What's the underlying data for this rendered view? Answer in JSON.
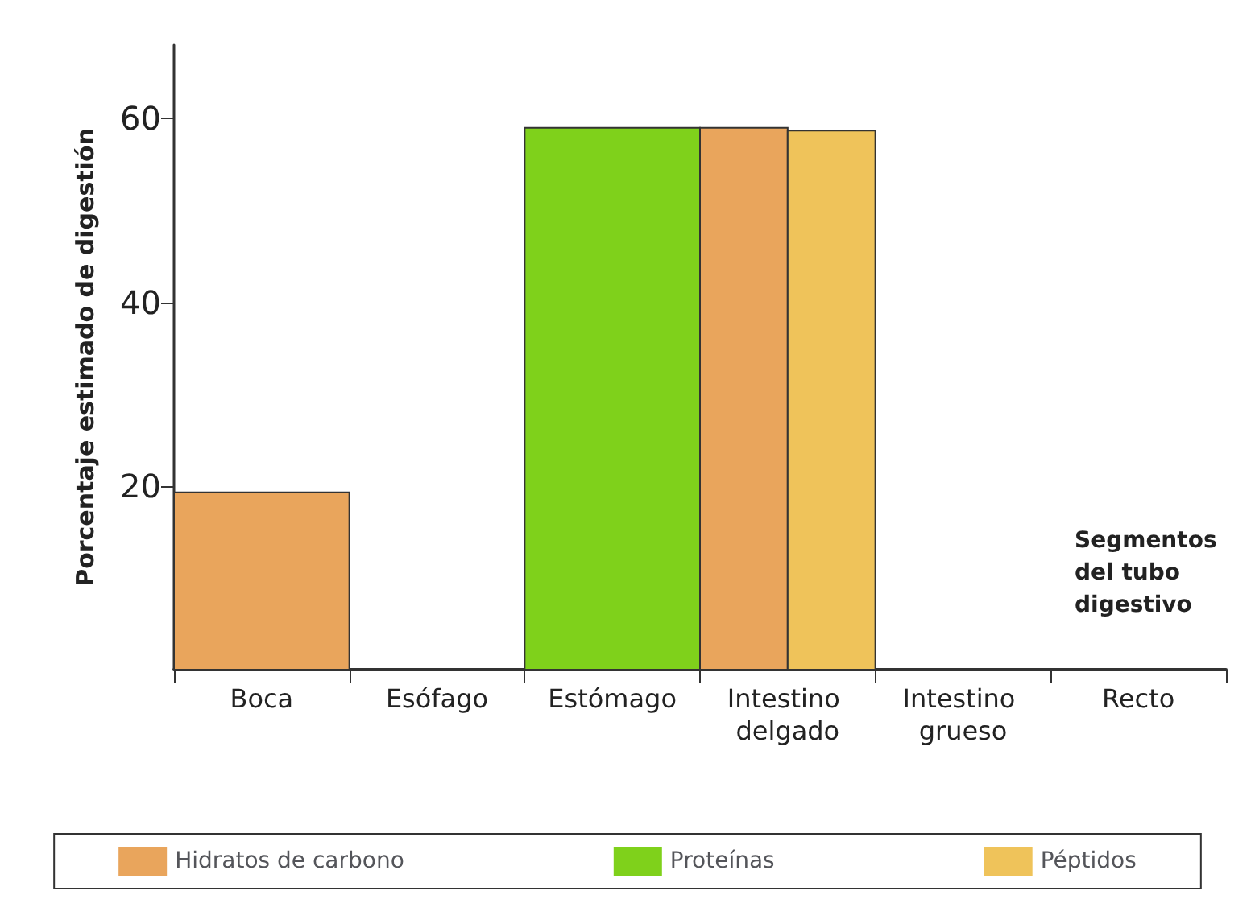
{
  "chart_data": {
    "type": "bar",
    "categories": [
      "Boca",
      "Esófago",
      "Estómago",
      "Intestino delgado",
      "Intestino grueso",
      "Recto"
    ],
    "xlabel": "Segmentos del tubo digestivo",
    "ylabel": "Porcentaje estimado de digestión",
    "ylim": [
      0,
      68
    ],
    "yticks": [
      20,
      40,
      60
    ],
    "grid": false,
    "legend": "bottom",
    "series": [
      {
        "name": "Hidratos de carbono",
        "color": "#e9a55c",
        "values": [
          19.3,
          null,
          null,
          59,
          null,
          null
        ]
      },
      {
        "name": "Proteínas",
        "color": "#7fd11b",
        "values": [
          null,
          null,
          59,
          null,
          null,
          null
        ]
      },
      {
        "name": "Péptidos",
        "color": "#efc35a",
        "values": [
          null,
          null,
          null,
          58.7,
          null,
          null
        ]
      }
    ]
  }
}
